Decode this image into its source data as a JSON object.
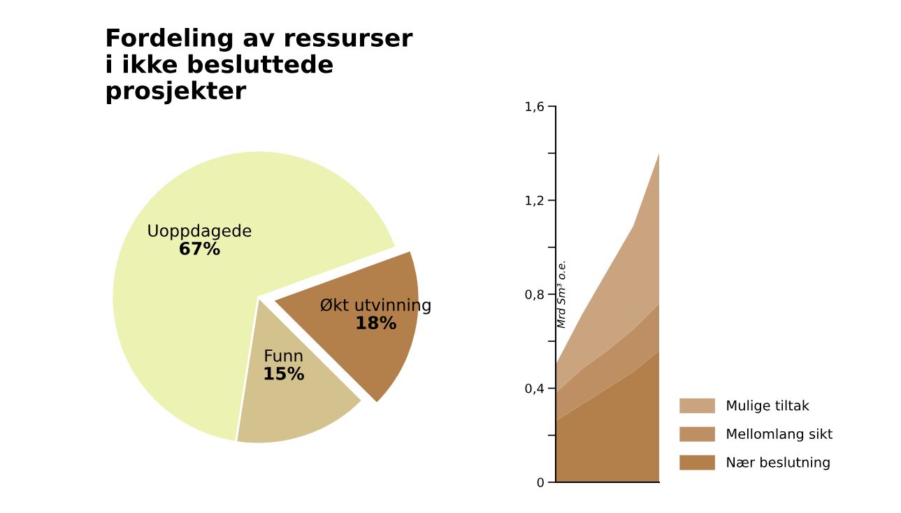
{
  "chart_data": [
    {
      "type": "pie",
      "title": "Fordeling av ressurser\ni ikke besluttede\nprosjekter",
      "categories": [
        "Uoppdagede",
        "Funn",
        "Økt utvinning"
      ],
      "values": [
        67,
        15,
        18
      ],
      "colors": [
        "#ecf2b2",
        "#d3c28e",
        "#b3804b"
      ],
      "value_labels": [
        "67%",
        "15%",
        "18%"
      ],
      "legend": false
    },
    {
      "type": "area",
      "stacked": true,
      "ylabel": "Mrd Sm³ o.e.",
      "categories": [
        null,
        null,
        null,
        null,
        null
      ],
      "series": [
        {
          "name": "Nær beslutning",
          "color": "#b3804b",
          "values": [
            0.26,
            0.33,
            0.4,
            0.47,
            0.56
          ]
        },
        {
          "name": "Mellomlang sikt",
          "color": "#bd8f63",
          "values": [
            0.12,
            0.15,
            0.16,
            0.18,
            0.2
          ]
        },
        {
          "name": "Mulige tiltak",
          "color": "#c9a47f",
          "values": [
            0.12,
            0.23,
            0.34,
            0.44,
            0.64
          ]
        }
      ],
      "ylim": [
        0,
        1.6
      ],
      "yticks": [
        0,
        {
          "value": 0.2,
          "label": null
        },
        {
          "value": 0.4,
          "label": "0,4"
        },
        {
          "value": 0.6,
          "label": null
        },
        {
          "value": 0.8,
          "label": "0,8"
        },
        {
          "value": 1.0,
          "label": null
        },
        {
          "value": 1.2,
          "label": "1,2"
        },
        {
          "value": 1.4,
          "label": null
        },
        {
          "value": 1.6,
          "label": "1,6"
        }
      ],
      "tick_labels": "y",
      "grid": false,
      "legend": "bottom right"
    }
  ]
}
